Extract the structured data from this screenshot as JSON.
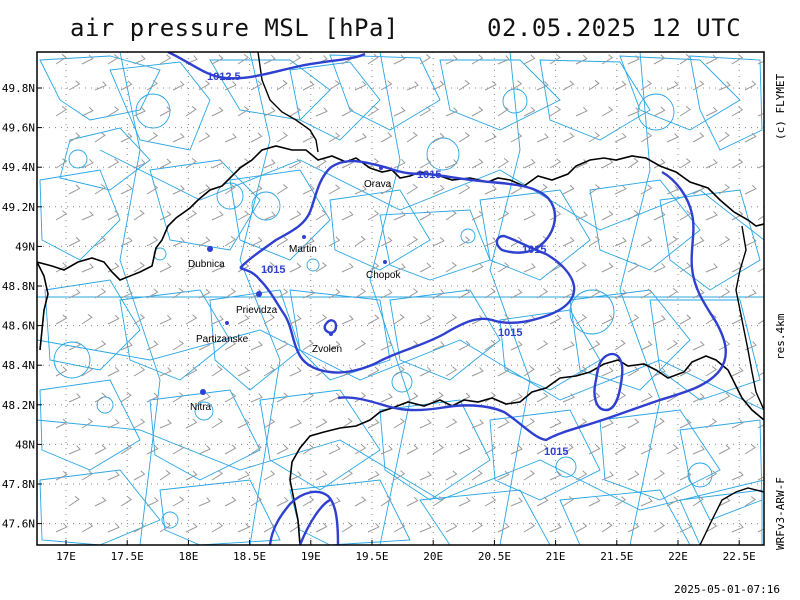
{
  "header": {
    "title": "air pressure MSL [hPa]",
    "datetime": "02.05.2025   12 UTC"
  },
  "side_labels": {
    "copyright": "(c) FLYMET",
    "resolution": "res.4km",
    "model": "WRFv3-ARW-F"
  },
  "footer": {
    "timestamp": "2025-05-01-07:16"
  },
  "axes": {
    "lon_ticks": [
      "17E",
      "17.5E",
      "18E",
      "18.5E",
      "19E",
      "19.5E",
      "20E",
      "20.5E",
      "21E",
      "21.5E",
      "22E",
      "22.5E"
    ],
    "lat_ticks": [
      "49.8N",
      "49.6N",
      "49.4N",
      "49.2N",
      "49N",
      "48.8N",
      "48.6N",
      "48.4N",
      "48.2N",
      "48N",
      "47.8N",
      "47.6N"
    ]
  },
  "cities": [
    {
      "name": "Orava"
    },
    {
      "name": "Martin"
    },
    {
      "name": "Dubnica"
    },
    {
      "name": "Chopok"
    },
    {
      "name": "Prievidza"
    },
    {
      "name": "Partizanske"
    },
    {
      "name": "Zvolen"
    },
    {
      "name": "Nitra"
    }
  ],
  "isobar_labels": [
    {
      "value": "1012.5"
    },
    {
      "value": "1015"
    },
    {
      "value": "1015"
    },
    {
      "value": "1015"
    },
    {
      "value": "1015"
    },
    {
      "value": "1015"
    }
  ],
  "colors": {
    "isobar": "#2f3fd0",
    "terrain": "#29a6e6",
    "border": "#000000",
    "grid": "#888888",
    "wind": "#9a9a9a"
  }
}
